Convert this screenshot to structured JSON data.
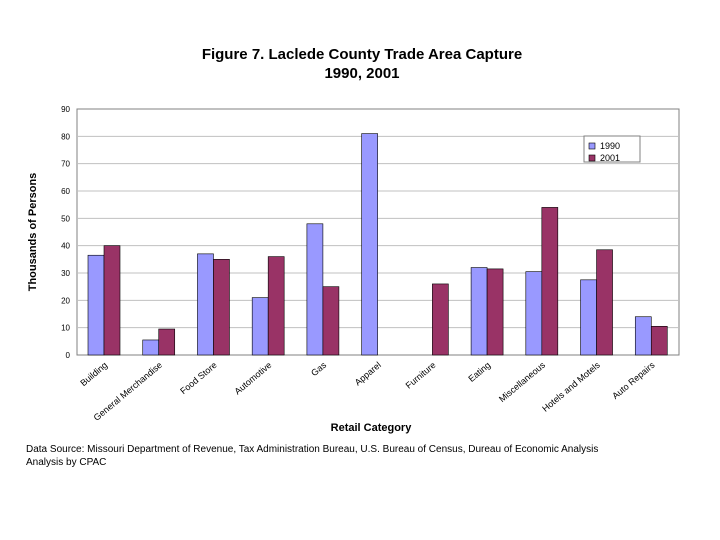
{
  "chart_data": {
    "type": "bar",
    "title": "Figure 7.  Laclede County Trade Area Capture",
    "subtitle": "1990, 2001",
    "xlabel": "Retail Category",
    "ylabel": "Thousands of Persons",
    "ylim": [
      0,
      90
    ],
    "yticks": [
      0,
      10,
      20,
      30,
      40,
      50,
      60,
      70,
      80,
      90
    ],
    "grid": true,
    "legend_position": "top-right",
    "categories": [
      "Building",
      "General Merchandise",
      "Food Store",
      "Automotive",
      "Gas",
      "Apparel",
      "Furniture",
      "Eating",
      "Miscellaneous",
      "Hotels and Motels",
      "Auto Repairs"
    ],
    "series": [
      {
        "name": "1990",
        "color": "#9999ff",
        "values": [
          36.5,
          5.5,
          37,
          21,
          48,
          81,
          null,
          32,
          30.5,
          27.5,
          14
        ]
      },
      {
        "name": "2001",
        "color": "#993366",
        "values": [
          40,
          9.5,
          35,
          36,
          25,
          null,
          26,
          31.5,
          54,
          38.5,
          10.5
        ]
      }
    ]
  },
  "source": {
    "line1": "Data Source: Missouri Department of Revenue, Tax Administration Bureau, U.S. Bureau of Census, Dureau of Economic Analysis",
    "line2": "Analysis by CPAC"
  }
}
